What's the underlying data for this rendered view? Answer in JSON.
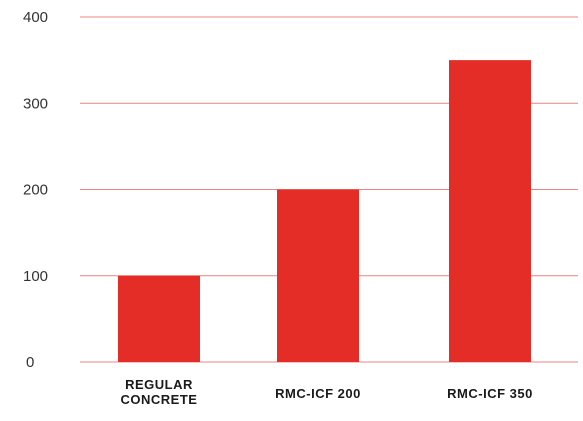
{
  "chart_data": {
    "type": "bar",
    "categories": [
      "REGULAR CONCRETE",
      "RMC-ICF 200",
      "RMC-ICF 350"
    ],
    "values": [
      100,
      200,
      350
    ],
    "ylim": [
      0,
      400
    ],
    "yticks": [
      0,
      100,
      200,
      300,
      400
    ],
    "title": "",
    "xlabel": "",
    "ylabel": "",
    "grid": true,
    "legend": "none",
    "colors": {
      "bar": "#e52d27",
      "grid": "#e8867f",
      "tick_text": "#333333",
      "category_text": "#1a1a1a"
    }
  }
}
